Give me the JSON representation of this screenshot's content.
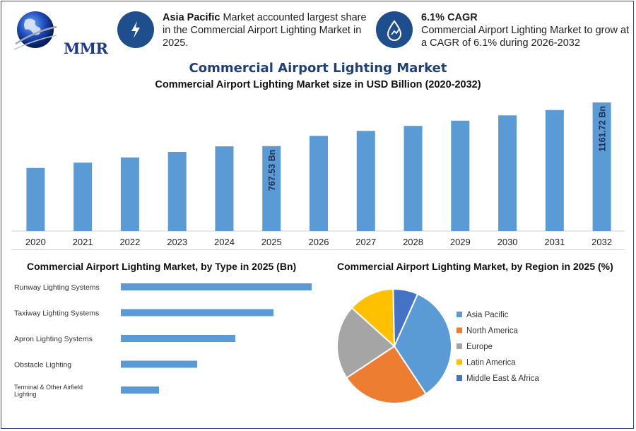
{
  "header": {
    "logo_text": "MMR",
    "info1": {
      "bold": "Asia Pacific",
      "text": " Market accounted largest share in the Commercial Airport Lighting Market in 2025.",
      "icon": "lightning-icon"
    },
    "info2": {
      "bold": "6.1% CAGR",
      "text": "Commercial Airport Lighting Market to grow at a CAGR of 6.1% during 2026-2032",
      "icon": "growth-drop-icon"
    }
  },
  "colors": {
    "bar": "#5b9bd5",
    "title": "#1f3f78",
    "circle": "#1f4e8c"
  },
  "chart_data": [
    {
      "type": "bar",
      "title": "Commercial Airport Lighting Market",
      "subtitle": "Commercial Airport Lighting Market size in USD Billion (2020-2032)",
      "categories": [
        "2020",
        "2021",
        "2022",
        "2023",
        "2024",
        "2025",
        "2026",
        "2027",
        "2028",
        "2029",
        "2030",
        "2031",
        "2032"
      ],
      "values": [
        570,
        618,
        665,
        715,
        765,
        767.53,
        860,
        905,
        950,
        997,
        1045,
        1093,
        1161.72
      ],
      "data_labels": {
        "2025": "767.53 Bn",
        "2032": "1161.72 Bn"
      },
      "grid": false
    },
    {
      "type": "bar",
      "orientation": "horizontal",
      "title": "Commercial Airport Lighting Market, by Type in 2025 (Bn)",
      "categories": [
        "Runway Lighting Systems",
        "Taxiway Lighting Systems",
        "Apron Lighting Systems",
        "Obstacle Lighting",
        "Terminal & Other Airfield Lighting"
      ],
      "values": [
        270,
        216,
        162,
        108,
        54
      ]
    },
    {
      "type": "pie",
      "title": "Commercial Airport Lighting Market, by Region in 2025 (%)",
      "legend_position": "right",
      "series": [
        {
          "name": "Asia Pacific",
          "value": 34,
          "color": "#5b9bd5"
        },
        {
          "name": "North America",
          "value": 25,
          "color": "#ed7d31"
        },
        {
          "name": "Europe",
          "value": 21,
          "color": "#a5a5a5"
        },
        {
          "name": "Latin America",
          "value": 13,
          "color": "#ffc000"
        },
        {
          "name": "Middle East & Africa",
          "value": 7,
          "color": "#4472c4"
        }
      ]
    }
  ]
}
